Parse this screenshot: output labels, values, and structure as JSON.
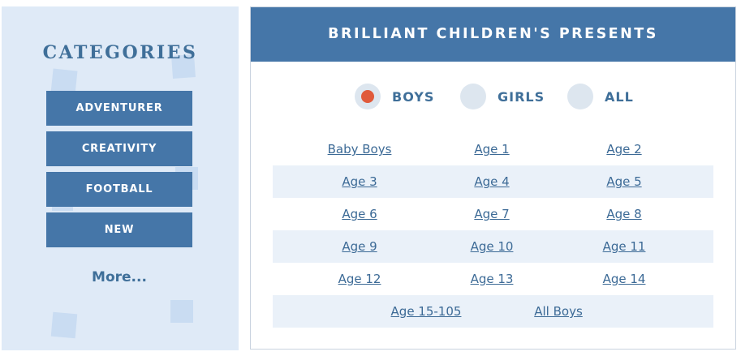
{
  "sidebar": {
    "title": "CATEGORIES",
    "buttons": [
      "ADVENTURER",
      "CREATIVITY",
      "FOOTBALL",
      "NEW"
    ],
    "more": "More..."
  },
  "panel": {
    "title": "BRILLIANT CHILDREN'S PRESENTS",
    "filters": [
      {
        "label": "BOYS",
        "selected": true
      },
      {
        "label": "GIRLS",
        "selected": false
      },
      {
        "label": "ALL",
        "selected": false
      }
    ],
    "links": [
      [
        "Baby Boys",
        "Age 1",
        "Age 2"
      ],
      [
        "Age 3",
        "Age 4",
        "Age 5"
      ],
      [
        "Age 6",
        "Age 7",
        "Age 8"
      ],
      [
        "Age 9",
        "Age 10",
        "Age 11"
      ],
      [
        "Age 12",
        "Age 13",
        "Age 14"
      ],
      [
        "Age 15-105",
        "All Boys"
      ]
    ]
  },
  "colors": {
    "accent": "#4576a8",
    "sidebar_bg": "#dfeaf7",
    "selected_dot": "#e05a3b",
    "alt_row": "#eaf1f9"
  }
}
